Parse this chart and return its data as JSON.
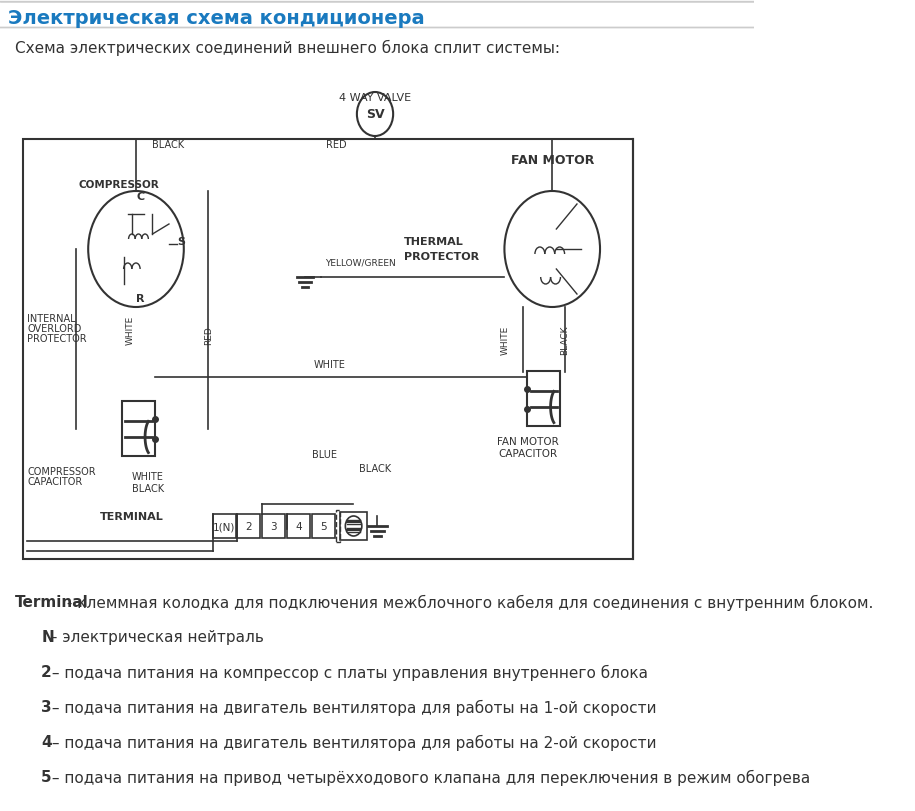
{
  "title": "Электрическая схема кондиционера",
  "subtitle": "Схема электрических соединений внешнего блока сплит системы:",
  "title_color": "#1a7abf",
  "title_fontsize": 14,
  "subtitle_fontsize": 11,
  "bg_color": "#ffffff",
  "diagram_bg": "#f5f5f5",
  "line_color": "#333333",
  "text_color": "#333333",
  "descriptions": [
    {
      "bold": "Terminal",
      "normal": " - клеммная колодка для подключения межблочного кабеля для соединения с внутренним блоком."
    },
    {
      "bold": "N",
      "normal": " - электрическая нейтраль"
    },
    {
      "bold": "2",
      "normal": " – подача питания на компрессор с платы управления внутреннего блока"
    },
    {
      "bold": "3",
      "normal": " – подача питания на двигатель вентилятора для работы на 1-ой скорости"
    },
    {
      "bold": "4",
      "normal": " – подача питания на двигатель вентилятора для работы на 2-ой скорости"
    },
    {
      "bold": "5",
      "normal": " – подача питания на привод четырёхходового клапана для переключения в режим обогрева"
    }
  ]
}
